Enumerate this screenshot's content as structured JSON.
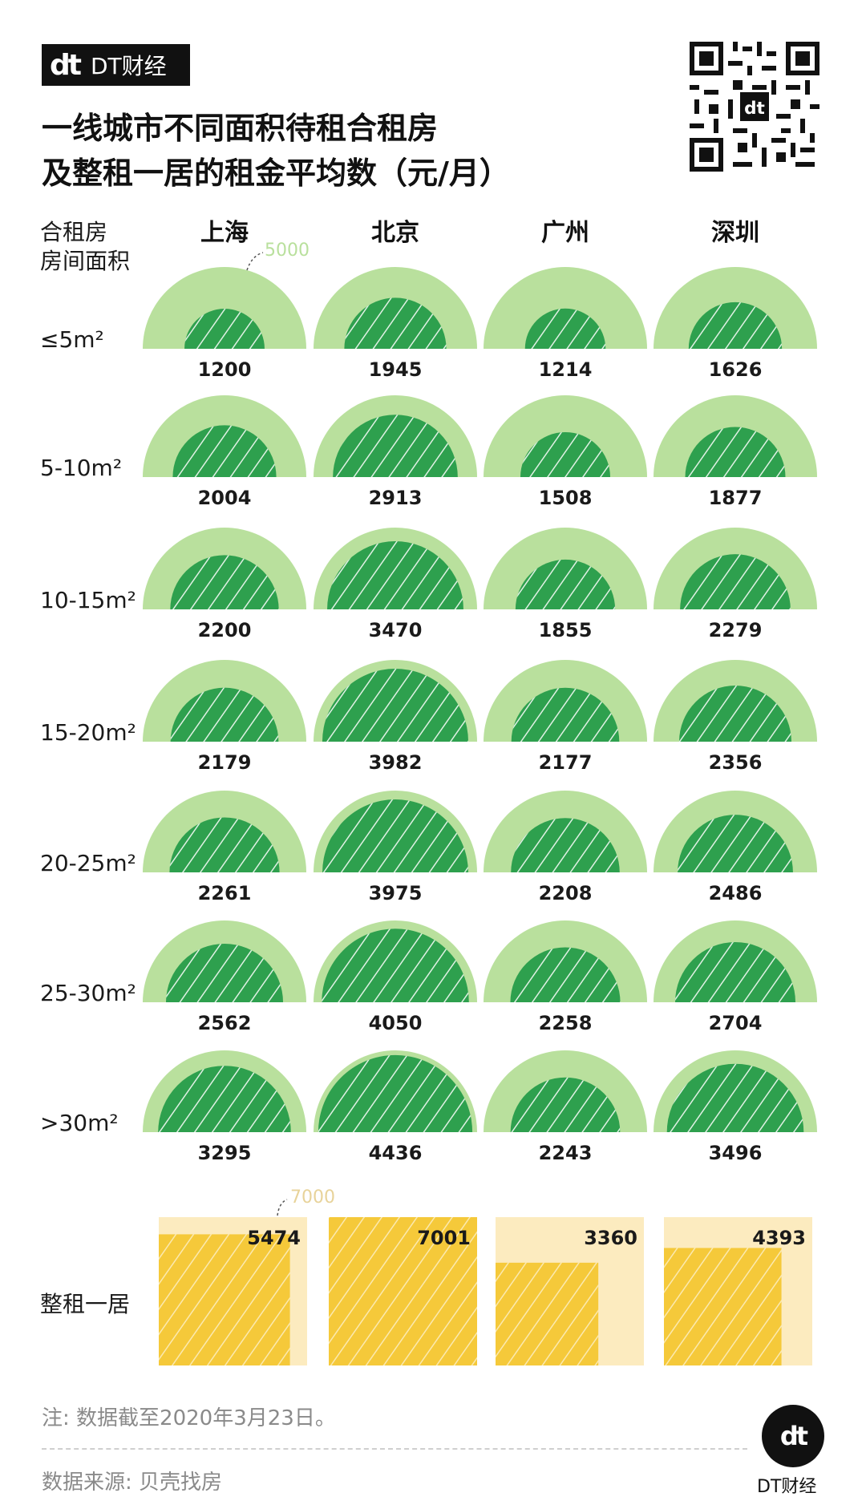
{
  "brand": {
    "name": "DT财经",
    "mark": "dt"
  },
  "title_lines": [
    "一线城市不同面积待租合租房",
    "及整租一居的租金平均数（元/月）"
  ],
  "chart_data": {
    "type": "bar",
    "row_header": [
      "合租房",
      "房间面积"
    ],
    "categories": [
      "上海",
      "北京",
      "广州",
      "深圳"
    ],
    "rows": [
      "≤5m²",
      "5-10m²",
      "10-15m²",
      "15-20m²",
      "20-25m²",
      "25-30m²",
      ">30m²"
    ],
    "series": [
      {
        "row": "≤5m²",
        "values": [
          1200,
          1945,
          1214,
          1626
        ]
      },
      {
        "row": "5-10m²",
        "values": [
          2004,
          2913,
          1508,
          1877
        ]
      },
      {
        "row": "10-15m²",
        "values": [
          2200,
          3470,
          1855,
          2279
        ]
      },
      {
        "row": "15-20m²",
        "values": [
          2179,
          3982,
          2177,
          2356
        ]
      },
      {
        "row": "20-25m²",
        "values": [
          2261,
          3975,
          2208,
          2486
        ]
      },
      {
        "row": "25-30m²",
        "values": [
          2562,
          4050,
          2258,
          2704
        ]
      },
      {
        "row": ">30m²",
        "values": [
          3295,
          4436,
          2243,
          3496
        ]
      }
    ],
    "shared_ref_value": 5000,
    "whole_rent_label": "整租一居",
    "whole_rent_values": [
      5474,
      7001,
      3360,
      4393
    ],
    "whole_ref_value": 7000,
    "colors": {
      "green_outer": "#b9e09d",
      "green_inner": "#2ea04e",
      "yellow_outer": "#fcebbf",
      "yellow_inner": "#f5c93a",
      "hatch": "#ffffff"
    }
  },
  "note": "注: 数据截至2020年3月23日。",
  "source": "数据来源: 贝壳找房"
}
